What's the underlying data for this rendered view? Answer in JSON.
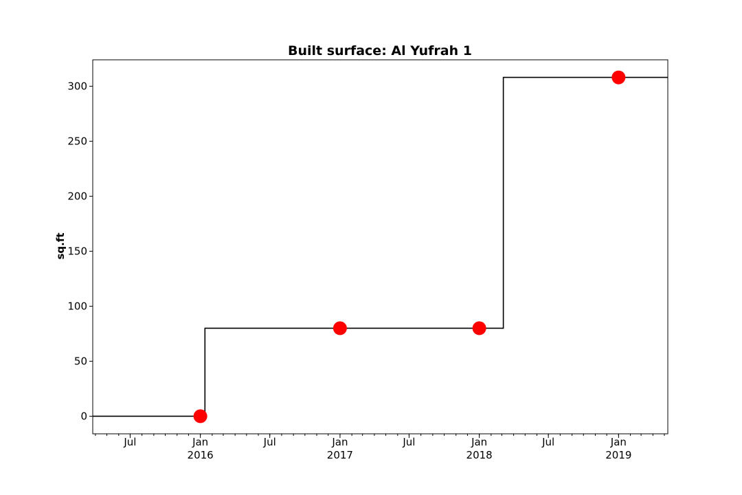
{
  "chart_data": {
    "type": "line",
    "title": "Built surface: Al Yufrah 1",
    "xlabel": "",
    "ylabel": "sq.ft",
    "xlim": [
      "2015-03-25",
      "2019-05-10"
    ],
    "ylim": [
      -16,
      324
    ],
    "y_ticks": [
      0,
      50,
      100,
      150,
      200,
      250,
      300
    ],
    "x_major_ticks": [
      {
        "date": "2015-07-01",
        "label": "Jul",
        "year": ""
      },
      {
        "date": "2016-01-01",
        "label": "Jan",
        "year": "2016"
      },
      {
        "date": "2016-07-01",
        "label": "Jul",
        "year": ""
      },
      {
        "date": "2017-01-01",
        "label": "Jan",
        "year": "2017"
      },
      {
        "date": "2017-07-01",
        "label": "Jul",
        "year": ""
      },
      {
        "date": "2018-01-01",
        "label": "Jan",
        "year": "2018"
      },
      {
        "date": "2018-07-01",
        "label": "Jul",
        "year": ""
      },
      {
        "date": "2019-01-01",
        "label": "Jan",
        "year": "2019"
      }
    ],
    "step_series": {
      "x": [
        "2015-03-25",
        "2016-01-13",
        "2016-01-13",
        "2018-03-05",
        "2018-03-05",
        "2019-05-10"
      ],
      "y": [
        0,
        0,
        80,
        80,
        308,
        308
      ],
      "color": "#000000"
    },
    "points": {
      "x": [
        "2016-01-01",
        "2017-01-01",
        "2018-01-01",
        "2019-01-01"
      ],
      "y": [
        0,
        80,
        80,
        308
      ],
      "color": "#ff0000"
    },
    "grid": false,
    "legend": "none"
  }
}
